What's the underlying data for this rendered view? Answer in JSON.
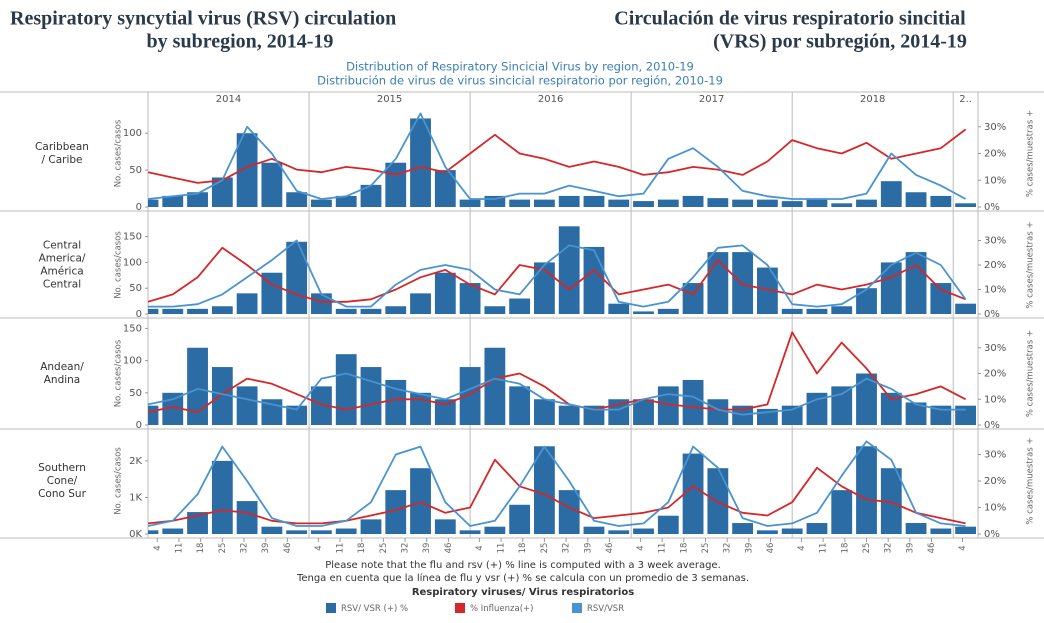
{
  "header": {
    "title_en": [
      "Respiratory syncytial virus (RSV) circulation",
      "by subregion, 2014-19"
    ],
    "title_es": [
      "Circulación de virus respiratorio sincitial",
      "(VRS) por subregión, 2014-19"
    ],
    "subtitle": [
      "Distribution of Respiratory Sincicial Virus by region, 2010-19",
      "Distribución de virus de virus sincicial respiratorio por región, 2010-19"
    ]
  },
  "footer": {
    "notes": [
      "Please note that the flu and rsv (+) % line is computed with a 3 week average.",
      "Tenga en cuenta que la línea de flu y vsr (+) % se calcula con un promedio de 3 semanas."
    ],
    "legend_title": "Respiratory viruses/ Virus respiratorios"
  },
  "chart_data": [
    {
      "type": "combo",
      "row_label": [
        "Caribbean",
        "/ Caribe"
      ],
      "year_labels": [
        "2014",
        "2015",
        "2016",
        "2017",
        "2018",
        "2.."
      ],
      "ylabel": "No. cases/casos",
      "y2label": "% cases/muestras +",
      "x": [
        0,
        8,
        16,
        24,
        32,
        40,
        48,
        56,
        64,
        72,
        80,
        88,
        96,
        104,
        112,
        120,
        128,
        136,
        144,
        152,
        160,
        168,
        176,
        184,
        192,
        200,
        208,
        216,
        224,
        232,
        240,
        248,
        256,
        264
      ],
      "xlim": [
        0,
        268
      ],
      "ylim": [
        0,
        145
      ],
      "yticks": [
        0,
        50,
        100
      ],
      "y2lim": [
        0,
        40
      ],
      "y2ticks": [
        {
          "value": 0,
          "label": "0%"
        },
        {
          "value": 10,
          "label": "10%"
        },
        {
          "value": 20,
          "label": "20%"
        },
        {
          "value": 30,
          "label": "30%"
        }
      ],
      "series": [
        {
          "name": "RSV/ VSR (+) %",
          "color": "#2a6ca3",
          "type": "bar",
          "values": [
            10,
            15,
            20,
            40,
            100,
            60,
            20,
            10,
            15,
            30,
            60,
            120,
            50,
            10,
            15,
            10,
            10,
            15,
            15,
            10,
            8,
            10,
            15,
            12,
            10,
            10,
            8,
            10,
            5,
            10,
            35,
            20,
            15,
            5
          ]
        },
        {
          "name": "% Influenza(+)",
          "color": "#d62728",
          "type": "line",
          "axis": "y2",
          "values": [
            13,
            11,
            9,
            10,
            15,
            18,
            14,
            13,
            15,
            14,
            12,
            15,
            13,
            20,
            27,
            20,
            18,
            15,
            17,
            15,
            12,
            13,
            15,
            14,
            12,
            17,
            25,
            22,
            20,
            24,
            18,
            20,
            22,
            29
          ]
        },
        {
          "name": "RSV/VSR",
          "color": "#4a93d1",
          "type": "line",
          "axis": "y2",
          "values": [
            3,
            4,
            5,
            10,
            30,
            20,
            6,
            3,
            4,
            8,
            18,
            35,
            15,
            3,
            3,
            5,
            5,
            8,
            6,
            4,
            5,
            18,
            22,
            15,
            6,
            4,
            3,
            3,
            3,
            5,
            20,
            12,
            8,
            3
          ]
        }
      ]
    },
    {
      "type": "combo",
      "row_label": [
        "Central",
        "America/",
        "América",
        "Central"
      ],
      "ylabel": "No. cases/casos",
      "y2label": "% cases/muestras +",
      "x": [
        0,
        8,
        16,
        24,
        32,
        40,
        48,
        56,
        64,
        72,
        80,
        88,
        96,
        104,
        112,
        120,
        128,
        136,
        144,
        152,
        160,
        168,
        176,
        184,
        192,
        200,
        208,
        216,
        224,
        232,
        240,
        248,
        256,
        264
      ],
      "xlim": [
        0,
        268
      ],
      "ylim": [
        0,
        190
      ],
      "yticks": [
        0,
        50,
        100,
        150
      ],
      "y2lim": [
        0,
        40
      ],
      "y2ticks": [
        {
          "value": 0,
          "label": "0%"
        },
        {
          "value": 10,
          "label": "10%"
        },
        {
          "value": 20,
          "label": "20%"
        },
        {
          "value": 30,
          "label": "30%"
        }
      ],
      "series": [
        {
          "name": "RSV/ VSR (+) %",
          "color": "#2a6ca3",
          "type": "bar",
          "values": [
            10,
            10,
            10,
            15,
            40,
            80,
            140,
            40,
            10,
            10,
            15,
            40,
            80,
            60,
            15,
            30,
            100,
            170,
            130,
            20,
            5,
            10,
            60,
            120,
            120,
            90,
            10,
            10,
            15,
            50,
            100,
            120,
            60,
            20
          ]
        },
        {
          "name": "% Influenza(+)",
          "color": "#d62728",
          "type": "line",
          "axis": "y2",
          "values": [
            5,
            8,
            15,
            27,
            20,
            12,
            8,
            5,
            5,
            6,
            10,
            15,
            18,
            12,
            8,
            20,
            18,
            10,
            18,
            8,
            10,
            12,
            8,
            22,
            12,
            10,
            8,
            12,
            10,
            12,
            15,
            20,
            10,
            6
          ]
        },
        {
          "name": "RSV/VSR",
          "color": "#4a93d1",
          "type": "line",
          "axis": "y2",
          "values": [
            3,
            3,
            4,
            8,
            15,
            22,
            30,
            8,
            3,
            3,
            12,
            18,
            20,
            18,
            10,
            8,
            20,
            28,
            26,
            5,
            3,
            5,
            15,
            27,
            28,
            20,
            4,
            3,
            4,
            10,
            20,
            25,
            20,
            6
          ]
        }
      ]
    },
    {
      "type": "combo",
      "row_label": [
        "Andean/",
        "Andina"
      ],
      "ylabel": "No. cases/casos",
      "y2label": "% cases/muestras +",
      "x": [
        0,
        8,
        16,
        24,
        32,
        40,
        48,
        56,
        64,
        72,
        80,
        88,
        96,
        104,
        112,
        120,
        128,
        136,
        144,
        152,
        160,
        168,
        176,
        184,
        192,
        200,
        208,
        216,
        224,
        232,
        240,
        248,
        256,
        264
      ],
      "xlim": [
        0,
        268
      ],
      "ylim": [
        0,
        160
      ],
      "yticks": [
        0,
        50,
        100,
        150
      ],
      "y2lim": [
        0,
        40
      ],
      "y2ticks": [
        {
          "value": 0,
          "label": "0%"
        },
        {
          "value": 10,
          "label": "10%"
        },
        {
          "value": 20,
          "label": "20%"
        },
        {
          "value": 30,
          "label": "30%"
        }
      ],
      "series": [
        {
          "name": "RSV/ VSR (+) %",
          "color": "#2a6ca3",
          "type": "bar",
          "values": [
            30,
            50,
            120,
            90,
            60,
            40,
            30,
            60,
            110,
            90,
            70,
            50,
            40,
            90,
            120,
            60,
            40,
            30,
            30,
            40,
            40,
            60,
            70,
            40,
            30,
            25,
            30,
            50,
            60,
            80,
            50,
            35,
            30,
            30
          ]
        },
        {
          "name": "% Influenza(+)",
          "color": "#d62728",
          "type": "line",
          "axis": "y2",
          "values": [
            5,
            7,
            5,
            12,
            18,
            16,
            12,
            8,
            6,
            8,
            10,
            10,
            8,
            12,
            18,
            20,
            15,
            8,
            6,
            8,
            10,
            8,
            7,
            6,
            6,
            8,
            36,
            20,
            32,
            22,
            10,
            12,
            15,
            10
          ]
        },
        {
          "name": "RSV/VSR",
          "color": "#4a93d1",
          "type": "line",
          "axis": "y2",
          "values": [
            8,
            10,
            14,
            12,
            10,
            8,
            6,
            18,
            20,
            17,
            14,
            12,
            10,
            14,
            18,
            16,
            10,
            8,
            6,
            6,
            10,
            12,
            11,
            6,
            4,
            5,
            6,
            10,
            12,
            18,
            14,
            8,
            6,
            6
          ]
        }
      ]
    },
    {
      "type": "combo",
      "row_label": [
        "Southern",
        "Cone/",
        "Cono Sur"
      ],
      "ylabel": "No. cases/casos",
      "y2label": "% cases/muestras +",
      "x": [
        0,
        8,
        16,
        24,
        32,
        40,
        48,
        56,
        64,
        72,
        80,
        88,
        96,
        104,
        112,
        120,
        128,
        136,
        144,
        152,
        160,
        168,
        176,
        184,
        192,
        200,
        208,
        216,
        224,
        232,
        240,
        248,
        256,
        264
      ],
      "xlim": [
        0,
        268
      ],
      "ylim": [
        0,
        2900
      ],
      "yticks": [
        {
          "value": 0,
          "label": "0K"
        },
        {
          "value": 1000,
          "label": "1K"
        },
        {
          "value": 2000,
          "label": "2K"
        }
      ],
      "y2lim": [
        0,
        40
      ],
      "y2ticks": [
        {
          "value": 0,
          "label": "0%"
        },
        {
          "value": 10,
          "label": "10%"
        },
        {
          "value": 20,
          "label": "20%"
        },
        {
          "value": 30,
          "label": "30%"
        }
      ],
      "xticks": [
        {
          "value": 3,
          "label": "4"
        },
        {
          "value": 10,
          "label": "11"
        },
        {
          "value": 17,
          "label": "18"
        },
        {
          "value": 24,
          "label": "25"
        },
        {
          "value": 31,
          "label": "32"
        },
        {
          "value": 38,
          "label": "39"
        },
        {
          "value": 45,
          "label": "46"
        },
        {
          "value": 55,
          "label": "4"
        },
        {
          "value": 62,
          "label": "11"
        },
        {
          "value": 69,
          "label": "18"
        },
        {
          "value": 76,
          "label": "25"
        },
        {
          "value": 83,
          "label": "32"
        },
        {
          "value": 90,
          "label": "39"
        },
        {
          "value": 97,
          "label": "46"
        },
        {
          "value": 107,
          "label": "4"
        },
        {
          "value": 114,
          "label": "11"
        },
        {
          "value": 121,
          "label": "18"
        },
        {
          "value": 128,
          "label": "25"
        },
        {
          "value": 135,
          "label": "32"
        },
        {
          "value": 142,
          "label": "39"
        },
        {
          "value": 149,
          "label": "46"
        },
        {
          "value": 159,
          "label": "4"
        },
        {
          "value": 166,
          "label": "11"
        },
        {
          "value": 173,
          "label": "18"
        },
        {
          "value": 180,
          "label": "25"
        },
        {
          "value": 187,
          "label": "32"
        },
        {
          "value": 194,
          "label": "39"
        },
        {
          "value": 201,
          "label": "46"
        },
        {
          "value": 211,
          "label": "4"
        },
        {
          "value": 218,
          "label": "11"
        },
        {
          "value": 225,
          "label": "18"
        },
        {
          "value": 232,
          "label": "25"
        },
        {
          "value": 239,
          "label": "32"
        },
        {
          "value": 246,
          "label": "39"
        },
        {
          "value": 253,
          "label": "46"
        },
        {
          "value": 263,
          "label": "4"
        }
      ],
      "series": [
        {
          "name": "RSV/ VSR (+) %",
          "color": "#2a6ca3",
          "type": "bar",
          "values": [
            100,
            150,
            600,
            2000,
            900,
            200,
            100,
            100,
            150,
            400,
            1200,
            1800,
            400,
            100,
            200,
            800,
            2400,
            1200,
            200,
            100,
            150,
            500,
            2200,
            1800,
            300,
            100,
            150,
            300,
            1200,
            2400,
            1800,
            300,
            150,
            200
          ]
        },
        {
          "name": "% Influenza(+)",
          "color": "#d62728",
          "type": "line",
          "axis": "y2",
          "values": [
            4,
            5,
            7,
            9,
            8,
            5,
            4,
            4,
            5,
            7,
            9,
            12,
            8,
            10,
            28,
            18,
            15,
            10,
            6,
            7,
            8,
            10,
            18,
            12,
            8,
            7,
            12,
            25,
            18,
            13,
            12,
            8,
            6,
            4
          ]
        },
        {
          "name": "RSV/VSR",
          "color": "#4a93d1",
          "type": "line",
          "axis": "y2",
          "values": [
            3,
            5,
            15,
            33,
            20,
            6,
            3,
            3,
            5,
            12,
            30,
            33,
            12,
            3,
            5,
            18,
            33,
            20,
            5,
            3,
            4,
            12,
            33,
            25,
            6,
            3,
            4,
            8,
            22,
            35,
            28,
            8,
            4,
            3
          ]
        }
      ]
    }
  ]
}
